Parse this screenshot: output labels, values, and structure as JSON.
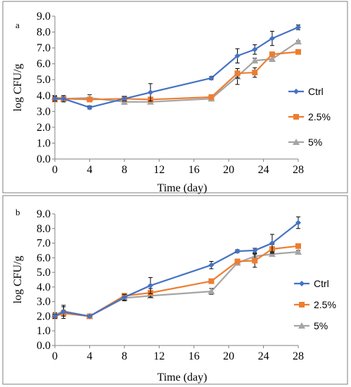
{
  "chart_data": [
    {
      "type": "line",
      "panel_label": "a",
      "xlabel": "Time (day)",
      "ylabel": "log CFU/g",
      "xlim": [
        0,
        28
      ],
      "ylim": [
        0,
        9
      ],
      "x_ticks": [
        "0",
        "4",
        "8",
        "12",
        "16",
        "20",
        "24",
        "28"
      ],
      "y_ticks": [
        "0.0",
        "1.0",
        "2.0",
        "3.0",
        "4.0",
        "5.0",
        "6.0",
        "7.0",
        "8.0",
        "9.0"
      ],
      "grid": false,
      "legend_position": "right",
      "series": [
        {
          "name": "Ctrl",
          "color": "#4472C4",
          "marker": "diamond",
          "points": [
            {
              "x": 0,
              "y": 3.8,
              "err": 0.15
            },
            {
              "x": 1,
              "y": 3.8,
              "err": 0.2
            },
            {
              "x": 4,
              "y": 3.25,
              "err": 0.1
            },
            {
              "x": 8,
              "y": 3.8,
              "err": 0.15
            },
            {
              "x": 11,
              "y": 4.2,
              "err": 0.55
            },
            {
              "x": 18,
              "y": 5.1,
              "err": 0.1
            },
            {
              "x": 21,
              "y": 6.5,
              "err": 0.45
            },
            {
              "x": 23,
              "y": 6.9,
              "err": 0.3
            },
            {
              "x": 25,
              "y": 7.6,
              "err": 0.45
            },
            {
              "x": 28,
              "y": 8.3,
              "err": 0.15
            }
          ]
        },
        {
          "name": "2.5%",
          "color": "#ED7D31",
          "marker": "square",
          "points": [
            {
              "x": 0,
              "y": 3.75,
              "err": 0.1
            },
            {
              "x": 1,
              "y": 3.8,
              "err": 0.1
            },
            {
              "x": 4,
              "y": 3.75,
              "err": 0.1
            },
            {
              "x": 8,
              "y": 3.8,
              "err": 0.1
            },
            {
              "x": 11,
              "y": 3.75,
              "err": 0.1
            },
            {
              "x": 18,
              "y": 3.9,
              "err": 0.1
            },
            {
              "x": 21,
              "y": 5.4,
              "err": 0.3
            },
            {
              "x": 23,
              "y": 5.45,
              "err": 0.3
            },
            {
              "x": 25,
              "y": 6.6,
              "err": 0.1
            },
            {
              "x": 28,
              "y": 6.75,
              "err": 0.05
            }
          ]
        },
        {
          "name": "5%",
          "color": "#A5A5A5",
          "marker": "triangle",
          "points": [
            {
              "x": 0,
              "y": 3.9,
              "err": 0.1
            },
            {
              "x": 1,
              "y": 3.8,
              "err": 0.1
            },
            {
              "x": 4,
              "y": 3.85,
              "err": 0.2
            },
            {
              "x": 8,
              "y": 3.6,
              "err": 0.15
            },
            {
              "x": 11,
              "y": 3.6,
              "err": 0.1
            },
            {
              "x": 18,
              "y": 3.8,
              "err": 0.1
            },
            {
              "x": 21,
              "y": 5.2,
              "err": 0.5
            },
            {
              "x": 23,
              "y": 6.2,
              "err": 0.15
            },
            {
              "x": 25,
              "y": 6.3,
              "err": 0.15
            },
            {
              "x": 28,
              "y": 7.4,
              "err": 0.05
            }
          ]
        }
      ]
    },
    {
      "type": "line",
      "panel_label": "b",
      "xlabel": "Time (day)",
      "ylabel": "log CFU/g",
      "xlim": [
        0,
        28
      ],
      "ylim": [
        0,
        9
      ],
      "x_ticks": [
        "0",
        "4",
        "8",
        "12",
        "16",
        "20",
        "24",
        "28"
      ],
      "y_ticks": [
        "0.0",
        "1.0",
        "2.0",
        "3.0",
        "4.0",
        "5.0",
        "6.0",
        "7.0",
        "8.0",
        "9.0"
      ],
      "grid": false,
      "legend_position": "right",
      "series": [
        {
          "name": "Ctrl",
          "color": "#4472C4",
          "marker": "diamond",
          "points": [
            {
              "x": 0,
              "y": 2.0,
              "err": 0.15
            },
            {
              "x": 1,
              "y": 2.3,
              "err": 0.45
            },
            {
              "x": 4,
              "y": 2.0,
              "err": 0.05
            },
            {
              "x": 8,
              "y": 3.3,
              "err": 0.2
            },
            {
              "x": 11,
              "y": 4.1,
              "err": 0.55
            },
            {
              "x": 18,
              "y": 5.5,
              "err": 0.25
            },
            {
              "x": 21,
              "y": 6.45,
              "err": 0.1
            },
            {
              "x": 23,
              "y": 6.5,
              "err": 0.15
            },
            {
              "x": 25,
              "y": 7.0,
              "err": 0.6
            },
            {
              "x": 28,
              "y": 8.4,
              "err": 0.4
            }
          ]
        },
        {
          "name": "2.5%",
          "color": "#ED7D31",
          "marker": "square",
          "points": [
            {
              "x": 0,
              "y": 2.0,
              "err": 0.1
            },
            {
              "x": 1,
              "y": 2.2,
              "err": 0.2
            },
            {
              "x": 4,
              "y": 2.0,
              "err": 0.05
            },
            {
              "x": 8,
              "y": 3.4,
              "err": 0.1
            },
            {
              "x": 11,
              "y": 3.6,
              "err": 0.3
            },
            {
              "x": 18,
              "y": 4.4,
              "err": 0.1
            },
            {
              "x": 21,
              "y": 5.75,
              "err": 0.15
            },
            {
              "x": 23,
              "y": 5.8,
              "err": 0.45
            },
            {
              "x": 25,
              "y": 6.6,
              "err": 0.3
            },
            {
              "x": 28,
              "y": 6.8,
              "err": 0.05
            }
          ]
        },
        {
          "name": "5%",
          "color": "#A5A5A5",
          "marker": "triangle",
          "points": [
            {
              "x": 0,
              "y": 2.1,
              "err": 0.15
            },
            {
              "x": 1,
              "y": 2.35,
              "err": 0.3
            },
            {
              "x": 4,
              "y": 2.0,
              "err": 0.05
            },
            {
              "x": 8,
              "y": 3.25,
              "err": 0.2
            },
            {
              "x": 11,
              "y": 3.4,
              "err": 0.1
            },
            {
              "x": 18,
              "y": 3.7,
              "err": 0.2
            },
            {
              "x": 21,
              "y": 5.65,
              "err": 0.1
            },
            {
              "x": 23,
              "y": 6.1,
              "err": 0.2
            },
            {
              "x": 25,
              "y": 6.25,
              "err": 0.1
            },
            {
              "x": 28,
              "y": 6.4,
              "err": 0.1
            }
          ]
        }
      ]
    }
  ]
}
